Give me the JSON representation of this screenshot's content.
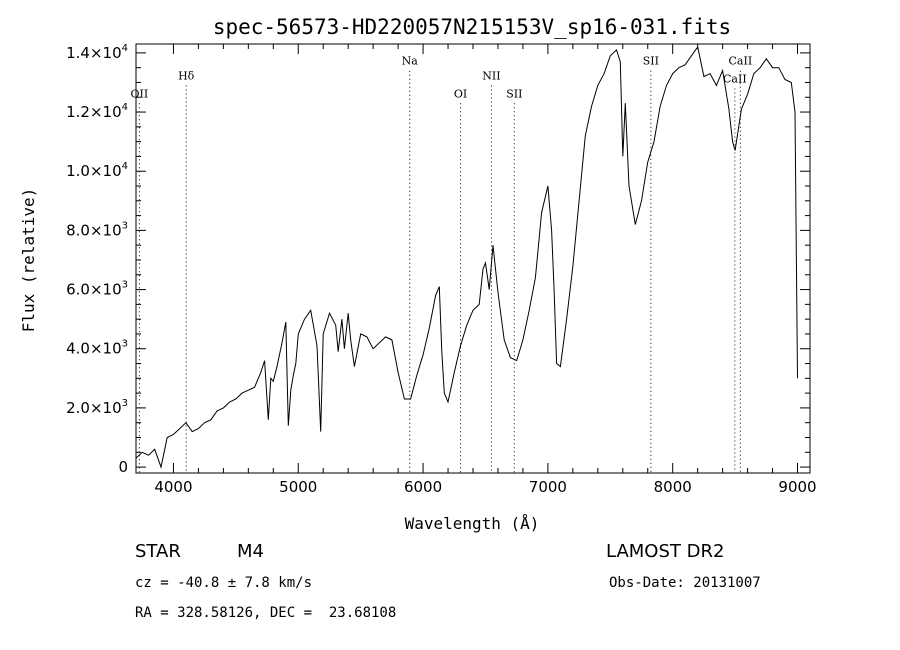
{
  "chart_data": {
    "type": "line",
    "title": "spec-56573-HD220057N215153V_sp16-031.fits",
    "xlabel": "Wavelength (Å)",
    "ylabel": "Flux (relative)",
    "xlim": [
      3700,
      9100
    ],
    "ylim": [
      -200,
      14300
    ],
    "xticks": [
      {
        "value": 4000,
        "label": "4000"
      },
      {
        "value": 5000,
        "label": "5000"
      },
      {
        "value": 6000,
        "label": "6000"
      },
      {
        "value": 7000,
        "label": "7000"
      },
      {
        "value": 8000,
        "label": "8000"
      },
      {
        "value": 9000,
        "label": "9000"
      }
    ],
    "yticks": [
      {
        "value": 0,
        "mant": "0",
        "exp": ""
      },
      {
        "value": 2000,
        "mant": "2.0×10",
        "exp": "3"
      },
      {
        "value": 4000,
        "mant": "4.0×10",
        "exp": "3"
      },
      {
        "value": 6000,
        "mant": "6.0×10",
        "exp": "3"
      },
      {
        "value": 8000,
        "mant": "8.0×10",
        "exp": "3"
      },
      {
        "value": 10000,
        "mant": "1.0×10",
        "exp": "4"
      },
      {
        "value": 12000,
        "mant": "1.2×10",
        "exp": "4"
      },
      {
        "value": 14000,
        "mant": "1.4×10",
        "exp": "4"
      }
    ],
    "lines": [
      {
        "label": "OII",
        "x": 3727,
        "label_y": 12500
      },
      {
        "label": "Hδ",
        "x": 4102,
        "label_y": 13100
      },
      {
        "label": "Na",
        "x": 5893,
        "label_y": 13600
      },
      {
        "label": "OI",
        "x": 6300,
        "label_y": 12500
      },
      {
        "label": "NII",
        "x": 6548,
        "label_y": 13100
      },
      {
        "label": "SII",
        "x": 6731,
        "label_y": 12500
      },
      {
        "label": "SII",
        "x": 7825,
        "label_y": 13600
      },
      {
        "label": "CaII",
        "x": 8498,
        "label_y": 13000
      },
      {
        "label": "CaII",
        "x": 8542,
        "label_y": 13600
      }
    ],
    "series": [
      {
        "x": [
          3700,
          3750,
          3800,
          3850,
          3900,
          3950,
          4000,
          4050,
          4100,
          4150,
          4200,
          4250,
          4300,
          4350,
          4400,
          4450,
          4500,
          4550,
          4600,
          4650,
          4700,
          4730,
          4760,
          4780,
          4800,
          4830,
          4870,
          4900,
          4920,
          4940,
          4960,
          4980,
          5000,
          5050,
          5100,
          5150,
          5180,
          5200,
          5250,
          5300,
          5320,
          5350,
          5370,
          5400,
          5420,
          5450,
          5500,
          5550,
          5600,
          5650,
          5700,
          5750,
          5800,
          5850,
          5900,
          5950,
          6000,
          6050,
          6100,
          6130,
          6150,
          6170,
          6200,
          6250,
          6300,
          6350,
          6400,
          6450,
          6480,
          6500,
          6530,
          6560,
          6600,
          6650,
          6700,
          6750,
          6800,
          6850,
          6900,
          6950,
          7000,
          7030,
          7050,
          7070,
          7100,
          7150,
          7200,
          7250,
          7300,
          7350,
          7400,
          7450,
          7500,
          7550,
          7580,
          7600,
          7620,
          7650,
          7700,
          7750,
          7800,
          7850,
          7900,
          7950,
          8000,
          8050,
          8100,
          8150,
          8200,
          8250,
          8300,
          8350,
          8400,
          8450,
          8480,
          8500,
          8550,
          8600,
          8650,
          8700,
          8750,
          8800,
          8850,
          8900,
          8950,
          8980,
          9000
        ],
        "y": [
          300,
          500,
          400,
          600,
          0,
          1000,
          1100,
          1300,
          1500,
          1200,
          1300,
          1500,
          1600,
          1900,
          2000,
          2200,
          2300,
          2500,
          2600,
          2700,
          3200,
          3600,
          1600,
          3000,
          2900,
          3400,
          4200,
          4900,
          1400,
          2600,
          3100,
          3500,
          4500,
          5000,
          5300,
          4100,
          1200,
          4500,
          5200,
          4800,
          3900,
          5000,
          4000,
          5200,
          4300,
          3400,
          4500,
          4400,
          4000,
          4200,
          4400,
          4300,
          3200,
          2300,
          2300,
          3100,
          3800,
          4700,
          5800,
          6100,
          3900,
          2500,
          2200,
          3200,
          4100,
          4800,
          5300,
          5500,
          6700,
          6900,
          6000,
          7500,
          5900,
          4300,
          3700,
          3600,
          4300,
          5300,
          6400,
          8600,
          9500,
          8000,
          6000,
          3500,
          3400,
          5000,
          6800,
          9000,
          11200,
          12200,
          12900,
          13300,
          13900,
          14100,
          13700,
          10500,
          12300,
          9500,
          8200,
          9000,
          10300,
          11000,
          12200,
          12900,
          13300,
          13500,
          13600,
          13900,
          14200,
          13200,
          13300,
          12900,
          13400,
          12100,
          11000,
          10700,
          12100,
          12600,
          13300,
          13500,
          13800,
          13500,
          13500,
          13100,
          13000,
          12000,
          3000
        ]
      }
    ]
  },
  "info": {
    "obj_type": "STAR",
    "subclass": "M4",
    "survey": "LAMOST DR2",
    "cz": "cz = -40.8 ± 7.8 km/s",
    "obs_date": "Obs-Date: 20131007",
    "radec": "RA = 328.58126, DEC =  23.68108"
  }
}
